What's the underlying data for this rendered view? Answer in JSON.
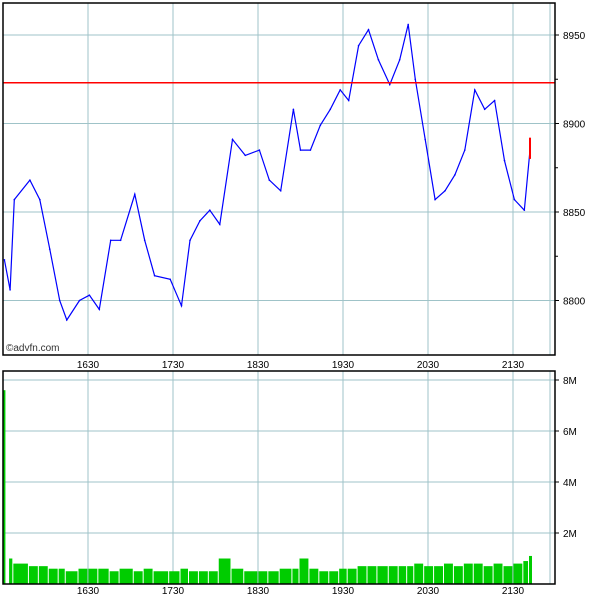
{
  "watermark": "©advfn.com",
  "chart_data": [
    {
      "type": "line",
      "panel": "price",
      "x": [
        "15:31",
        "15:35",
        "15:38",
        "15:49",
        "15:56",
        "16:03",
        "16:10",
        "16:15",
        "16:24",
        "16:31",
        "16:38",
        "16:46",
        "16:53",
        "17:03",
        "17:10",
        "17:17",
        "17:28",
        "17:36",
        "17:42",
        "17:49",
        "17:56",
        "18:03",
        "18:12",
        "18:21",
        "18:31",
        "18:38",
        "18:46",
        "18:55",
        "19:00",
        "19:07",
        "19:14",
        "19:21",
        "19:28",
        "19:34",
        "19:41",
        "19:48",
        "19:55",
        "20:03",
        "20:10",
        "20:16",
        "20:21",
        "20:28",
        "20:35",
        "20:42",
        "20:49",
        "20:56",
        "21:03",
        "21:10",
        "21:17",
        "21:24",
        "21:31",
        "21:38",
        "21:42"
      ],
      "values": [
        8823,
        8806,
        8857,
        8868,
        8857,
        8829,
        8800,
        8789,
        8800,
        8803,
        8795,
        8834,
        8834,
        8860,
        8834,
        8814,
        8812,
        8797,
        8834,
        8845,
        8851,
        8843,
        8891,
        8882,
        8885,
        8868,
        8862,
        8908,
        8885,
        8885,
        8899,
        8908,
        8919,
        8913,
        8944,
        8953,
        8936,
        8922,
        8936,
        8956,
        8925,
        8891,
        8857,
        8862,
        8871,
        8885,
        8919,
        8908,
        8913,
        8879,
        8857,
        8851,
        8885
      ],
      "reference_line": 8923,
      "colors": {
        "series": "#0000ff",
        "reference": "#ff0000",
        "grid": "#9fc3c8"
      },
      "x_ticks": [
        "1630",
        "1730",
        "1830",
        "1930",
        "2030",
        "2130"
      ],
      "y_ticks": [
        "8800",
        "8850",
        "8900",
        "8950"
      ],
      "ylim": [
        8770,
        8970
      ],
      "grid": true
    },
    {
      "type": "bar",
      "panel": "volume",
      "x": [
        "15:31",
        "15:35",
        "15:38",
        "15:49",
        "15:56",
        "16:03",
        "16:10",
        "16:15",
        "16:24",
        "16:31",
        "16:38",
        "16:46",
        "16:53",
        "17:03",
        "17:10",
        "17:17",
        "17:28",
        "17:36",
        "17:42",
        "17:49",
        "17:56",
        "18:03",
        "18:12",
        "18:21",
        "18:31",
        "18:38",
        "18:46",
        "18:55",
        "19:00",
        "19:07",
        "19:14",
        "19:21",
        "19:28",
        "19:34",
        "19:41",
        "19:48",
        "19:55",
        "20:03",
        "20:10",
        "20:16",
        "20:21",
        "20:28",
        "20:35",
        "20:42",
        "20:49",
        "20:56",
        "21:03",
        "21:10",
        "21:17",
        "21:24",
        "21:31",
        "21:38",
        "21:42"
      ],
      "values": [
        7.6,
        1.0,
        0.8,
        0.7,
        0.7,
        0.6,
        0.6,
        0.5,
        0.6,
        0.6,
        0.6,
        0.5,
        0.6,
        0.5,
        0.6,
        0.5,
        0.5,
        0.6,
        0.5,
        0.5,
        0.5,
        1.0,
        0.6,
        0.5,
        0.5,
        0.5,
        0.6,
        0.6,
        1.0,
        0.6,
        0.5,
        0.5,
        0.6,
        0.6,
        0.7,
        0.7,
        0.7,
        0.7,
        0.7,
        0.7,
        0.8,
        0.7,
        0.7,
        0.8,
        0.7,
        0.8,
        0.8,
        0.7,
        0.8,
        0.7,
        0.8,
        0.9,
        1.1
      ],
      "unit": "M",
      "colors": {
        "bars": "#00cc00"
      },
      "x_ticks": [
        "1630",
        "1730",
        "1830",
        "1930",
        "2030",
        "2130"
      ],
      "y_ticks": [
        "2M",
        "4M",
        "6M",
        "8M"
      ],
      "ylim": [
        0,
        8.3
      ],
      "grid": true
    }
  ]
}
